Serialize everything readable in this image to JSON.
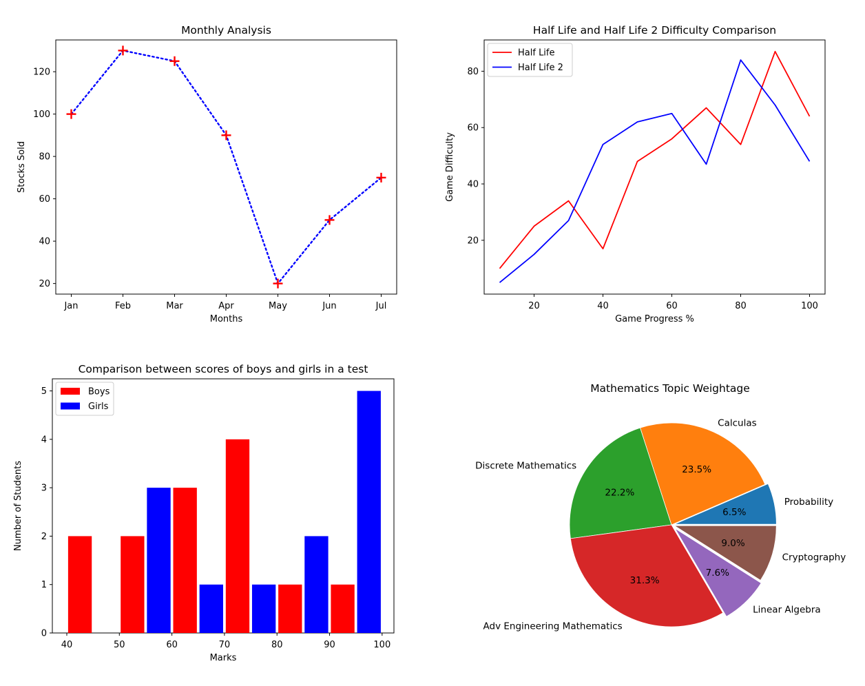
{
  "chart_data": [
    {
      "type": "line",
      "title": "Monthly Analysis",
      "xlabel": "Months",
      "ylabel": "Stocks Sold",
      "categories": [
        "Jan",
        "Feb",
        "Mar",
        "Apr",
        "May",
        "Jun",
        "Jul"
      ],
      "values": [
        100,
        130,
        125,
        90,
        20,
        50,
        70
      ],
      "ylim": [
        15,
        135
      ],
      "yticks": [
        20,
        40,
        60,
        80,
        100,
        120
      ],
      "line_style": "dotted",
      "line_color": "#0000ff",
      "marker": "+",
      "marker_color": "#ff0000"
    },
    {
      "type": "line",
      "title": "Half Life and Half Life 2 Difficulty Comparison",
      "xlabel": "Game Progress %",
      "ylabel": "Game Difficulty",
      "x": [
        10,
        20,
        30,
        40,
        50,
        60,
        70,
        80,
        90,
        100
      ],
      "xlim": [
        5.5,
        104.5
      ],
      "ylim": [
        0.9,
        91.1
      ],
      "xticks": [
        20,
        40,
        60,
        80,
        100
      ],
      "yticks": [
        20,
        40,
        60,
        80
      ],
      "legend_position": "upper-left",
      "series": [
        {
          "name": "Half Life",
          "color": "#ff0000",
          "values": [
            10,
            25,
            34,
            17,
            48,
            56,
            67,
            54,
            87,
            64
          ]
        },
        {
          "name": "Half Life 2",
          "color": "#0000ff",
          "values": [
            5,
            15,
            27,
            54,
            62,
            65,
            47,
            84,
            68,
            48
          ]
        }
      ]
    },
    {
      "type": "bar",
      "title": "Comparison between scores of boys and girls in a test",
      "xlabel": "Marks",
      "ylabel": "Number of Students",
      "bins": [
        [
          40,
          45
        ],
        [
          45,
          50
        ],
        [
          50,
          55
        ],
        [
          55,
          60
        ],
        [
          60,
          65
        ],
        [
          65,
          70
        ],
        [
          70,
          75
        ],
        [
          75,
          80
        ],
        [
          80,
          85
        ],
        [
          85,
          90
        ],
        [
          90,
          95
        ],
        [
          95,
          100
        ]
      ],
      "xlim": [
        37.25,
        102.25
      ],
      "ylim": [
        0,
        5.25
      ],
      "xticks": [
        40,
        50,
        60,
        70,
        80,
        90,
        100
      ],
      "yticks": [
        0,
        1,
        2,
        3,
        4,
        5
      ],
      "legend_position": "upper-left",
      "series": [
        {
          "name": "Boys",
          "color": "#ff0000",
          "values": [
            2,
            0,
            2,
            0,
            3,
            0,
            4,
            0,
            1,
            0,
            1,
            0
          ]
        },
        {
          "name": "Girls",
          "color": "#0000ff",
          "values": [
            0,
            0,
            0,
            3,
            0,
            1,
            0,
            1,
            0,
            2,
            0,
            5
          ]
        }
      ]
    },
    {
      "type": "pie",
      "title": "Mathematics Topic Weightage",
      "start_angle": 0,
      "direction": "counterclockwise",
      "slices": [
        {
          "label": "Probability",
          "value": 6.5,
          "pct": "6.5%",
          "color": "#1f77b4",
          "explode": 0.03
        },
        {
          "label": "Calculas",
          "value": 23.5,
          "pct": "23.5%",
          "color": "#ff7f0e",
          "explode": 0
        },
        {
          "label": "Discrete Mathematics",
          "value": 22.2,
          "pct": "22.2%",
          "color": "#2ca02c",
          "explode": 0
        },
        {
          "label": "Adv Engineering Mathematics",
          "value": 31.3,
          "pct": "31.3%",
          "color": "#d62728",
          "explode": 0
        },
        {
          "label": "Linear Algebra",
          "value": 7.6,
          "pct": "7.6%",
          "color": "#9467bd",
          "explode": 0.05
        },
        {
          "label": "Cryptography",
          "value": 9.0,
          "pct": "9.0%",
          "color": "#8c564b",
          "explode": 0.03
        }
      ]
    }
  ]
}
